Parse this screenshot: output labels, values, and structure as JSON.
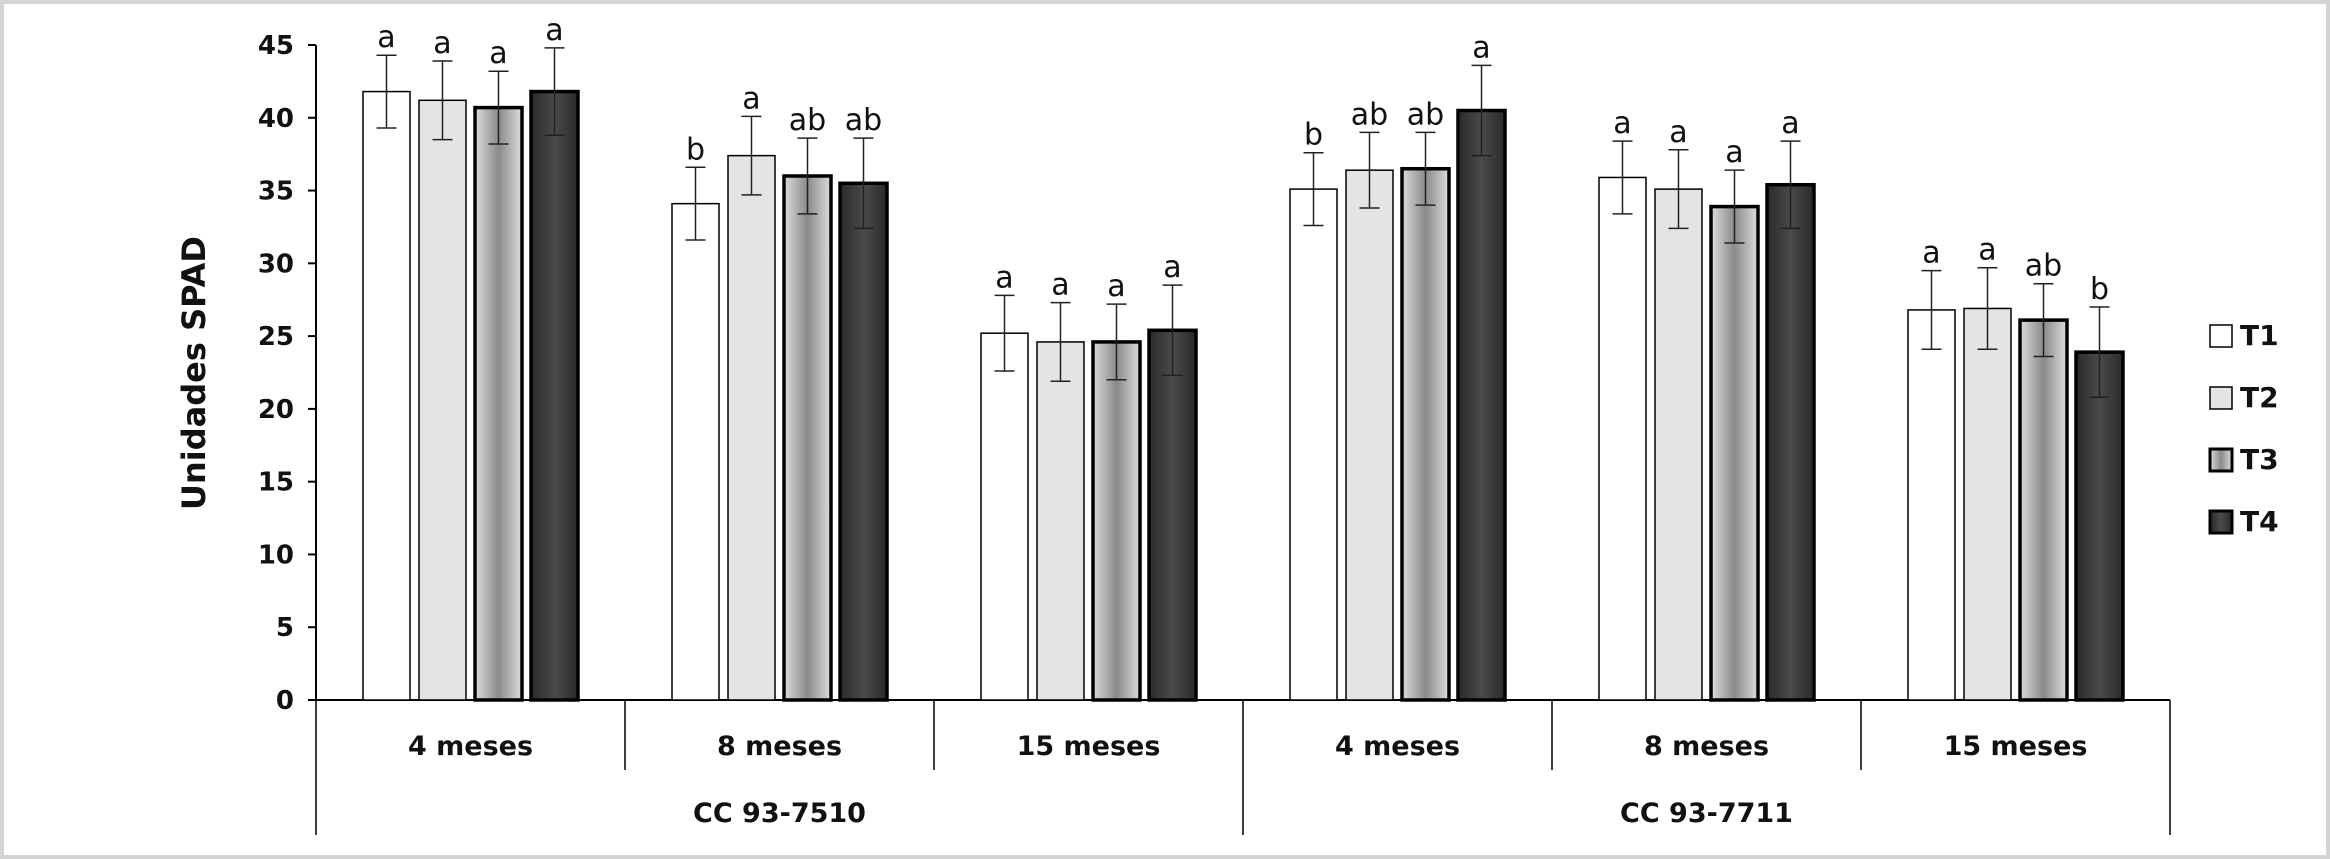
{
  "chart_data": {
    "type": "bar",
    "title": "",
    "ylabel": "Unidades SPAD",
    "xlabel": "",
    "ylim": [
      0,
      45
    ],
    "yticks": [
      0,
      5,
      10,
      15,
      20,
      25,
      30,
      35,
      40,
      45
    ],
    "grid": false,
    "legend_position": "right",
    "groups": [
      {
        "label": "CC 93-7510",
        "categories": [
          "4 meses",
          "8 meses",
          "15 meses"
        ]
      },
      {
        "label": "CC 93-7711",
        "categories": [
          "4 meses",
          "8 meses",
          "15 meses"
        ]
      }
    ],
    "categories": [
      "4 meses",
      "8 meses",
      "15 meses",
      "4 meses",
      "8 meses",
      "15 meses"
    ],
    "series": [
      {
        "name": "T1",
        "color": "#ffffff",
        "values": [
          41.8,
          34.1,
          25.2,
          35.1,
          35.9,
          26.8
        ],
        "errors": [
          2.5,
          2.5,
          2.6,
          2.5,
          2.5,
          2.7
        ],
        "letters": [
          "a",
          "b",
          "a",
          "b",
          "a",
          "a"
        ]
      },
      {
        "name": "T2",
        "color": "#e4e4e4",
        "values": [
          41.2,
          37.4,
          24.6,
          36.4,
          35.1,
          26.9
        ],
        "errors": [
          2.7,
          2.7,
          2.7,
          2.6,
          2.7,
          2.8
        ],
        "letters": [
          "a",
          "a",
          "a",
          "ab",
          "a",
          "a"
        ]
      },
      {
        "name": "T3",
        "color": "#9a9a9a",
        "values": [
          40.7,
          36.0,
          24.6,
          36.5,
          33.9,
          26.1
        ],
        "errors": [
          2.5,
          2.6,
          2.6,
          2.5,
          2.5,
          2.5
        ],
        "letters": [
          "a",
          "ab",
          "a",
          "ab",
          "a",
          "ab"
        ]
      },
      {
        "name": "T4",
        "color": "#333333",
        "values": [
          41.8,
          35.5,
          25.4,
          40.5,
          35.4,
          23.9
        ],
        "errors": [
          3.0,
          3.1,
          3.1,
          3.1,
          3.0,
          3.1
        ],
        "letters": [
          "a",
          "ab",
          "a",
          "a",
          "a",
          "b"
        ]
      }
    ]
  }
}
